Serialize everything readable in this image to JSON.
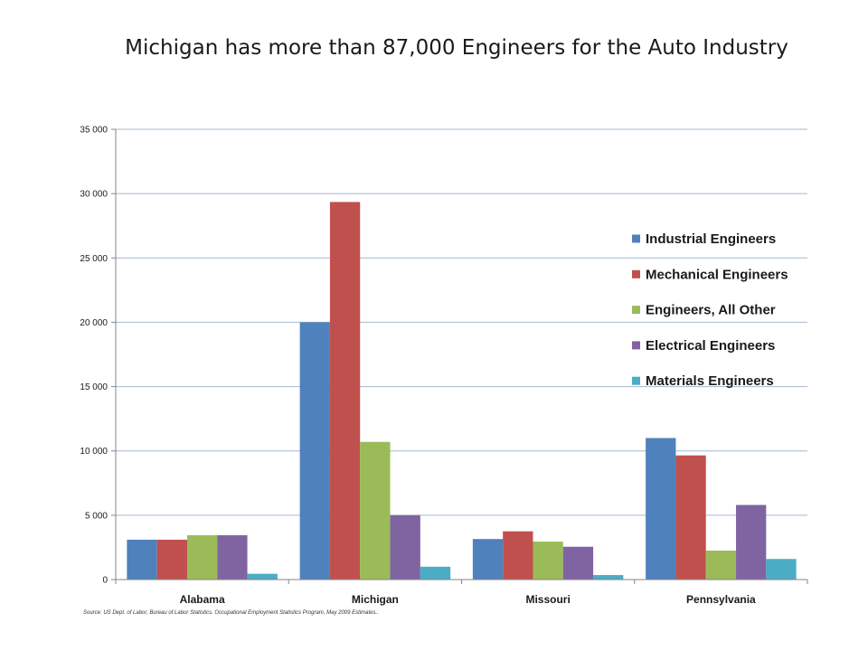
{
  "colors": {
    "axis": "#868686",
    "grid": "#a6b9d0",
    "text": "#1a1a1a"
  },
  "chart_data": {
    "type": "bar",
    "title": "Michigan has more than 87,000 Engineers for the Auto Industry",
    "xlabel": "",
    "ylabel": "",
    "ylim": [
      0,
      35000
    ],
    "y_ticks": [
      "0",
      "5 000",
      "10 000",
      "15 000",
      "20 000",
      "25 000",
      "30 000",
      "35 000"
    ],
    "categories": [
      "Alabama",
      "Michigan",
      "Missouri",
      "Pennsylvania"
    ],
    "series": [
      {
        "name": "Industrial Engineers",
        "color": "#4f81bd",
        "values": [
          3100,
          20000,
          3150,
          11000
        ]
      },
      {
        "name": "Mechanical Engineers",
        "color": "#c0504d",
        "values": [
          3100,
          29350,
          3750,
          9650
        ]
      },
      {
        "name": "Engineers, All Other",
        "color": "#9bbb59",
        "values": [
          3450,
          10700,
          2950,
          2250
        ]
      },
      {
        "name": "Electrical Engineers",
        "color": "#8064a2",
        "values": [
          3450,
          5000,
          2550,
          5800
        ]
      },
      {
        "name": "Materials Engineers",
        "color": "#4bacc6",
        "values": [
          450,
          1000,
          350,
          1600
        ]
      }
    ],
    "grid": true,
    "legend_position": "right",
    "source": "Source:  US Dept. of Labor, Bureau of Labor Statistics.  Occupational Employment Statistics Program, May 2009 Estimates.."
  }
}
